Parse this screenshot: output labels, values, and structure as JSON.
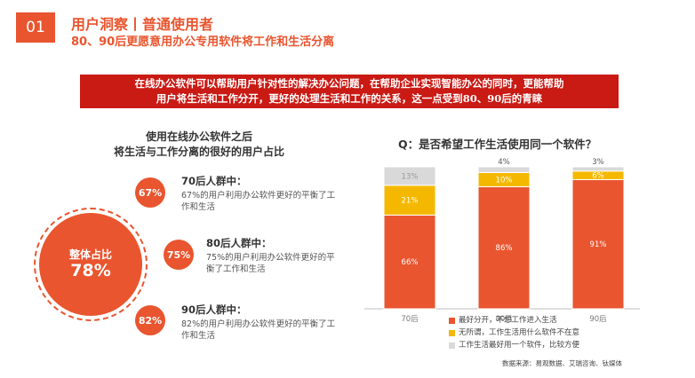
{
  "header": {
    "badge": "01",
    "title": "用户洞察丨普通使用者",
    "subtitle": "80、90后更愿意用办公专用软件将工作和生活分离"
  },
  "banner": {
    "line1": "在线办公软件可以帮助用户针对性的解决办公问题，在帮助企业实现智能办公的同时，更能帮助",
    "line2": "用户将生活和工作分开，更好的处理生活和工作的关系，这一点受到80、90后的青睐"
  },
  "left": {
    "title_line1": "使用在线办公软件之后",
    "title_line2": "将生活与工作分离的很好的用户占比",
    "overall_label": "整体占比",
    "overall_value": "78%",
    "groups": [
      {
        "pct": "67%",
        "title": "70后人群中：",
        "desc": "67%的用户利用办公软件更好的平衡了工作和生活"
      },
      {
        "pct": "75%",
        "title": "80后人群中：",
        "desc": "75%的用户利用办公软件更好的平衡了工作和生活"
      },
      {
        "pct": "82%",
        "title": "90后人群中：",
        "desc": "82%的用户利用办公软件更好的平衡了工作和生活"
      }
    ]
  },
  "colors": {
    "accent": "#e9552f",
    "banner": "#c91a14",
    "series_best": "#e9552f",
    "series_indifferent": "#f5b800",
    "series_same": "#d9d9d9"
  },
  "chart_data": {
    "type": "bar",
    "stacked": true,
    "title": "Q：是否希望工作生活使用同一个软件？",
    "categories": [
      "70后",
      "80后",
      "90后"
    ],
    "ylim": [
      0,
      100
    ],
    "series": [
      {
        "name": "最好分开，不想工作进入生活",
        "values": [
          66,
          86,
          91
        ]
      },
      {
        "name": "无所谓，工作生活用什么软件不在意",
        "values": [
          21,
          10,
          6
        ]
      },
      {
        "name": "工作生活最好用一个软件，比较方便",
        "values": [
          13,
          4,
          3
        ]
      }
    ]
  },
  "source": "数据来源：易观数据、艾瑞咨询、钛媒体"
}
